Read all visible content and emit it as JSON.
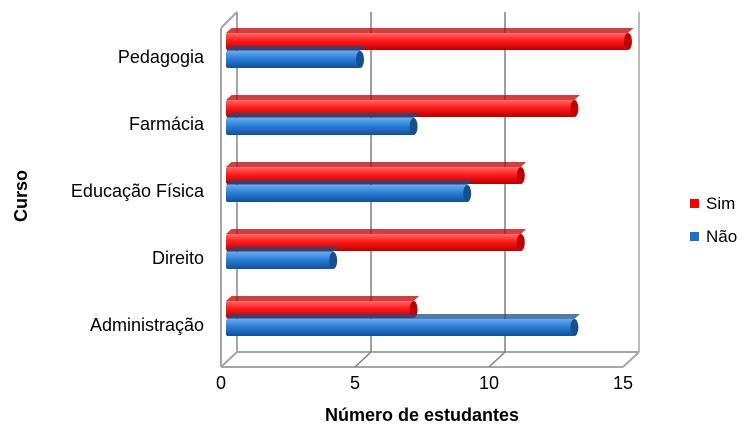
{
  "chart_data": {
    "type": "bar",
    "orientation": "horizontal",
    "categories": [
      "Pedagogia",
      "Farmácia",
      "Educação Física",
      "Direito",
      "Administração"
    ],
    "series": [
      {
        "name": "Sim",
        "values": [
          15,
          13,
          11,
          11,
          7
        ],
        "color": "#ff0000"
      },
      {
        "name": "Não",
        "values": [
          5,
          7,
          9,
          4,
          13
        ],
        "color": "#1f6fc5"
      }
    ],
    "xlabel": "Número de estudantes",
    "ylabel": "Curso",
    "xlim": [
      0,
      15
    ],
    "xticks": [
      "0",
      "5",
      "10",
      "15"
    ],
    "grid": true,
    "legend_position": "right"
  }
}
